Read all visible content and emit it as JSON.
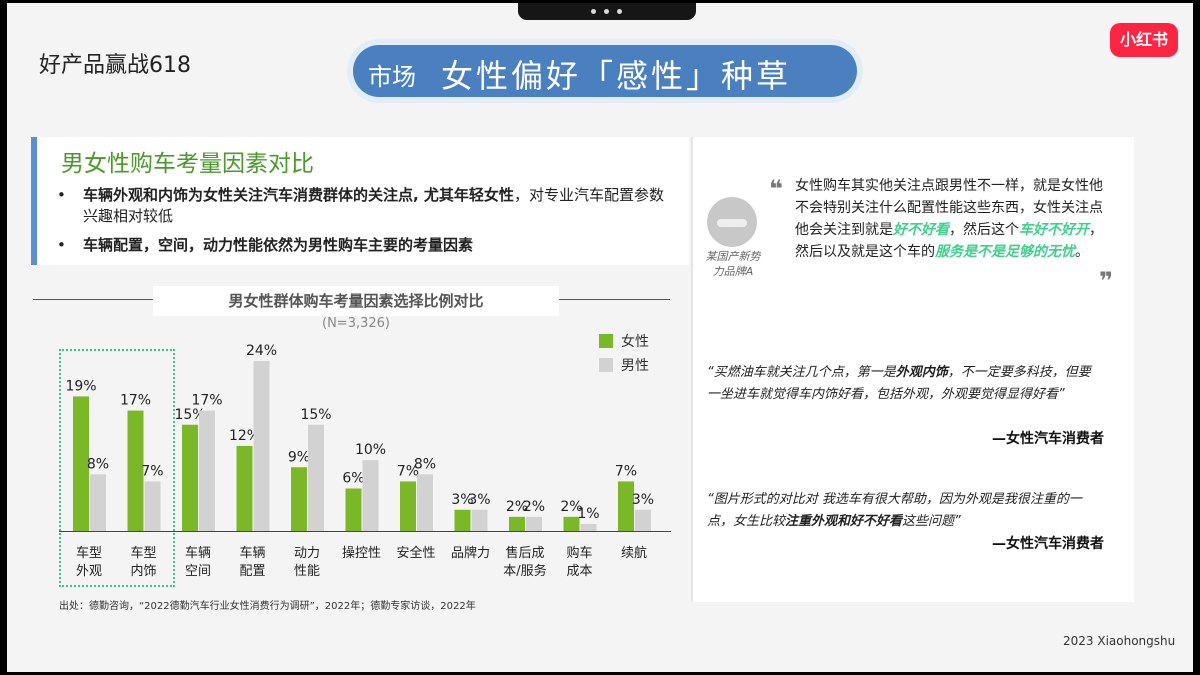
{
  "brand": "好产品赢战618",
  "title": {
    "section": "市场",
    "main": "女性偏好「感性」种草"
  },
  "logo": "小红书",
  "left_panel": {
    "title": "男女性购车考量因素对比",
    "bullet1_bold": "车辆外观和内饰为女性关注汽车消费群体的关注点, 尤其年轻女性",
    "bullet1_rest": "，对专业汽车配置参数兴趣相对较低",
    "bullet2": "车辆配置，空间，动力性能依然为男性购车主要的考量因素",
    "bullet_symbol": "•"
  },
  "chart_data": {
    "type": "bar",
    "title": "男女性群体购车考量因素选择比例对比",
    "subtitle": "(N=3,326)",
    "categories": [
      [
        "车型",
        "外观"
      ],
      [
        "车型",
        "内饰"
      ],
      [
        "车辆",
        "空间"
      ],
      [
        "车辆",
        "配置"
      ],
      [
        "动力",
        "性能"
      ],
      [
        "操控性"
      ],
      [
        "安全性"
      ],
      [
        "品牌力"
      ],
      [
        "售后成",
        "本/服务"
      ],
      [
        "购车",
        "成本"
      ],
      [
        "续航"
      ]
    ],
    "series": [
      {
        "name": "女性",
        "values": [
          19,
          17,
          15,
          12,
          9,
          6,
          7,
          3,
          2,
          2,
          7
        ],
        "color": "#7ab828"
      },
      {
        "name": "男性",
        "values": [
          8,
          7,
          17,
          24,
          15,
          10,
          8,
          3,
          2,
          1,
          3
        ],
        "color": "#d2d2d2"
      }
    ],
    "value_suffix": "%",
    "ylim": [
      0,
      24
    ],
    "legend": "top-right",
    "grid": false
  },
  "source": "出处：德勤咨询，“2022德勤汽车行业女性消费行为调研”，2022年；德勤专家访谈，2022年",
  "right_panel": {
    "avatar_label": "某国产新势力品牌A",
    "quote_open": "❝",
    "quote_close": "❞",
    "quote1_a": "女性购车其实他关注点跟男性不一样，就是女性他不会特别关注什么配置性能这些东西，女性关注点他会关注到就是",
    "quote1_hl1": "好不好看",
    "quote1_b": "，然后这个",
    "quote1_hl2": "车好不好开",
    "quote1_c": "，然后以及就是这个车的",
    "quote1_hl3": "服务是不是足够的无忧",
    "quote1_d": "。",
    "quote2_a": "“买燃油车就关注几个点，第一是",
    "quote2_bold": "外观内饰",
    "quote2_b": "，不一定要多科技，但要一坐进车就觉得车内饰好看，包括外观，外观要觉得显得好看”",
    "quote2_attr": "—女性汽车消费者",
    "quote3_a": "“图片形式的对比对 我选车有很大帮助，因为外观是我很注重的一点，女生比较",
    "quote3_bold": "注重外观和好不好看",
    "quote3_b": "这些问题”",
    "quote3_attr": "—女性汽车消费者"
  },
  "footer": "2023 Xiaohongshu"
}
